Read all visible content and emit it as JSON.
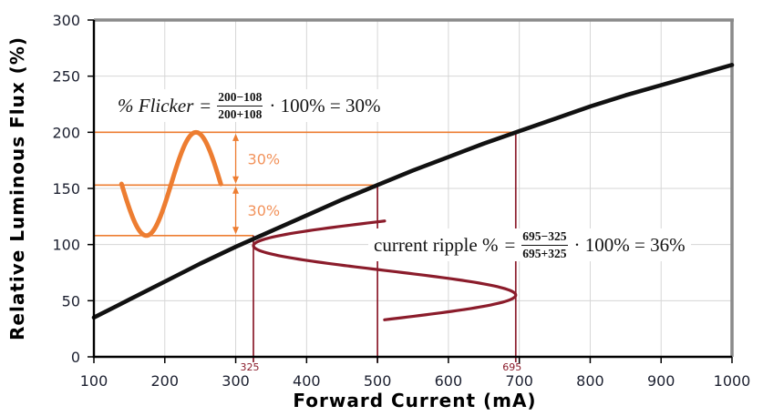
{
  "chart_data": {
    "type": "line",
    "title": "",
    "xlabel": "Forward Current (mA)",
    "ylabel": "Relative Luminous Flux (%)",
    "xlim": [
      100,
      1000
    ],
    "ylim": [
      0,
      300
    ],
    "x_ticks": [
      100,
      200,
      300,
      400,
      500,
      600,
      700,
      800,
      900,
      1000
    ],
    "y_ticks": [
      0,
      50,
      100,
      150,
      200,
      250,
      300
    ],
    "grid": true,
    "legend": "none",
    "series": [
      {
        "name": "relative luminous flux vs forward current",
        "color": "#111111",
        "x": [
          100,
          150,
          200,
          250,
          300,
          350,
          400,
          450,
          500,
          550,
          600,
          650,
          700,
          750,
          800,
          850,
          900,
          950,
          1000
        ],
        "y": [
          35,
          51,
          67,
          83,
          98,
          112,
          126,
          140,
          153,
          166,
          178,
          190,
          201,
          212,
          223,
          233,
          242,
          251,
          260
        ]
      }
    ],
    "key_points": [
      {
        "x": 325,
        "y": 108
      },
      {
        "x": 500,
        "y": 153
      },
      {
        "x": 695,
        "y": 200
      }
    ],
    "annotations": {
      "flicker": {
        "color": "#ED7D31",
        "label_color": "#F2935C",
        "hlines": [
          {
            "value": 200,
            "x_from": 100,
            "x_to": 695
          },
          {
            "value": 153,
            "x_from": 100,
            "x_to": 500
          },
          {
            "value": 108,
            "x_from": 100,
            "x_to": 325
          }
        ],
        "wave": {
          "x_start": 139,
          "x_end": 279,
          "center_value": 154,
          "amplitude": 46
        },
        "arrow_x": 300,
        "arrows": [
          {
            "from_value": 200,
            "to_value": 153,
            "label": "30%"
          },
          {
            "from_value": 153,
            "to_value": 108,
            "label": "30%"
          }
        ]
      },
      "ripple": {
        "color": "#8B1C2B",
        "vlines": [
          {
            "x": 325,
            "top": 108,
            "label": "325"
          },
          {
            "x": 500,
            "top": 153,
            "label": ""
          },
          {
            "x": 695,
            "top": 200,
            "label": "695"
          }
        ],
        "wave": {
          "center_x": 510,
          "amplitude": 185,
          "top_y": 121,
          "bottom_y": 33
        }
      }
    }
  },
  "formulas": {
    "flicker": {
      "lhs": "% Flicker",
      "eq": "=",
      "numerator": "200−108",
      "denominator": "200+108",
      "rhs": "· 100% = 30%"
    },
    "ripple": {
      "lhs": "current ripple %",
      "eq": "=",
      "numerator": "695−325",
      "denominator": "695+325",
      "rhs": "· 100% = 36%"
    }
  },
  "colors": {
    "grid": "#D6D6D6",
    "border": "#8A8A8A",
    "axis": "#000000",
    "tick_label": "#1C2030",
    "curve": "#111111",
    "orange": "#ED7D31",
    "dark_red": "#8B1C2B"
  }
}
